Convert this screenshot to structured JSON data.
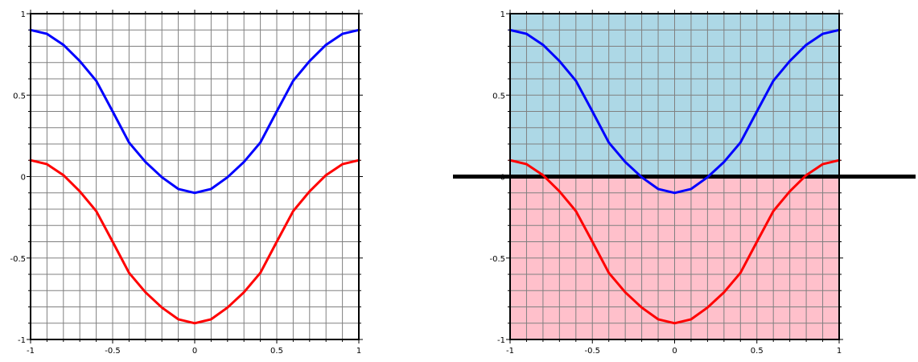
{
  "chart_data": [
    {
      "type": "line",
      "xlim": [
        -1,
        1
      ],
      "ylim": [
        -1,
        1
      ],
      "grid": true,
      "xticks": [
        "-1",
        "-0.5",
        "0",
        "0.5",
        "1"
      ],
      "yticks": [
        "1",
        "0.5",
        "0",
        "-0.5",
        "-1"
      ],
      "series": [
        {
          "color": "#0000ff",
          "x": [
            -1,
            -0.9,
            -0.8,
            -0.7,
            -0.6,
            -0.5,
            -0.4,
            -0.3,
            -0.2,
            -0.1,
            0,
            0.1,
            0.2,
            0.3,
            0.4,
            0.5,
            0.6,
            0.7,
            0.8,
            0.9,
            1
          ],
          "y": [
            0.9,
            0.876,
            0.809,
            0.709,
            0.588,
            0.4,
            0.209,
            0.09,
            -0.004,
            -0.076,
            -0.1,
            -0.076,
            -0.004,
            0.09,
            0.209,
            0.4,
            0.588,
            0.709,
            0.809,
            0.876,
            0.9
          ]
        },
        {
          "color": "#ff0000",
          "x": [
            -1,
            -0.9,
            -0.8,
            -0.7,
            -0.6,
            -0.5,
            -0.4,
            -0.3,
            -0.2,
            -0.1,
            0,
            0.1,
            0.2,
            0.3,
            0.4,
            0.5,
            0.6,
            0.7,
            0.8,
            0.9,
            1
          ],
          "y": [
            0.1,
            0.076,
            0.009,
            -0.091,
            -0.212,
            -0.4,
            -0.591,
            -0.71,
            -0.804,
            -0.876,
            -0.9,
            -0.876,
            -0.804,
            -0.71,
            -0.591,
            -0.4,
            -0.212,
            -0.091,
            0.009,
            0.076,
            0.1
          ]
        }
      ]
    },
    {
      "type": "line",
      "xlim": [
        -1,
        1
      ],
      "ylim": [
        -1,
        1
      ],
      "grid": true,
      "xticks": [
        "-1",
        "-0.5",
        "0",
        "0.5",
        "1"
      ],
      "yticks": [
        "1",
        "0.5",
        "0",
        "-0.5",
        "-1"
      ],
      "regions": [
        {
          "from": 0,
          "to": 1,
          "color": "#add8e6"
        },
        {
          "from": -1,
          "to": 0,
          "color": "#ffc0cb"
        }
      ],
      "hline": {
        "y": 0,
        "color": "#000000"
      },
      "series": [
        {
          "color": "#0000ff",
          "x": [
            -1,
            -0.9,
            -0.8,
            -0.7,
            -0.6,
            -0.5,
            -0.4,
            -0.3,
            -0.2,
            -0.1,
            0,
            0.1,
            0.2,
            0.3,
            0.4,
            0.5,
            0.6,
            0.7,
            0.8,
            0.9,
            1
          ],
          "y": [
            0.9,
            0.876,
            0.809,
            0.709,
            0.588,
            0.4,
            0.209,
            0.09,
            -0.004,
            -0.076,
            -0.1,
            -0.076,
            -0.004,
            0.09,
            0.209,
            0.4,
            0.588,
            0.709,
            0.809,
            0.876,
            0.9
          ]
        },
        {
          "color": "#ff0000",
          "x": [
            -1,
            -0.9,
            -0.8,
            -0.7,
            -0.6,
            -0.5,
            -0.4,
            -0.3,
            -0.2,
            -0.1,
            0,
            0.1,
            0.2,
            0.3,
            0.4,
            0.5,
            0.6,
            0.7,
            0.8,
            0.9,
            1
          ],
          "y": [
            0.1,
            0.076,
            0.009,
            -0.091,
            -0.212,
            -0.4,
            -0.591,
            -0.71,
            -0.804,
            -0.876,
            -0.9,
            -0.876,
            -0.804,
            -0.71,
            -0.591,
            -0.4,
            -0.212,
            -0.091,
            0.009,
            0.076,
            0.1
          ]
        }
      ]
    }
  ]
}
